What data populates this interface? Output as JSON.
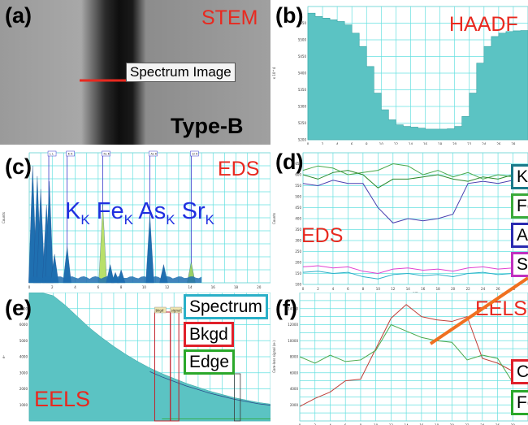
{
  "colors": {
    "teal": "#5bc3c3",
    "red": "#e8291f",
    "blue": "#1f2fe0",
    "grid": "#66e0e0",
    "green": "#4aa84a",
    "purple": "#4a3fb0",
    "magenta": "#e040d0",
    "orange": "#f07020",
    "darkred": "#c0403a"
  },
  "panels": {
    "a": {
      "letter": "(a)",
      "title": "STEM",
      "spectrum_label": "Spectrum Image",
      "type_label": "Type-B"
    },
    "b": {
      "letter": "(b)",
      "title": "HAADF"
    },
    "c": {
      "letter": "(c)",
      "title": "EDS",
      "element_labels": [
        {
          "base": "K",
          "sub": "K"
        },
        {
          "base": "Fe",
          "sub": "K"
        },
        {
          "base": "As",
          "sub": "K"
        },
        {
          "base": "Sr",
          "sub": "K"
        }
      ],
      "peak_tags": [
        "L L",
        "K K",
        "Fe K",
        "As K",
        "Sr K"
      ]
    },
    "d": {
      "letter": "(d)",
      "title": "EDS",
      "legend": [
        "K",
        "Fe",
        "As",
        "Sr"
      ]
    },
    "e": {
      "letter": "(e)",
      "title": "EELS",
      "legend": [
        "Spectrum",
        "Bkgd",
        "Edge"
      ],
      "window_tags": [
        "bkgd",
        "signal"
      ]
    },
    "f": {
      "letter": "(f)",
      "title": "EELS",
      "legend": [
        "C",
        "Fe"
      ]
    }
  },
  "chart_data": [
    {
      "id": "b",
      "type": "area",
      "title": "HAADF",
      "xlabel": "nm",
      "ylabel": "x 10^4",
      "xlim": [
        0,
        30
      ],
      "ylim": [
        5200,
        5600
      ],
      "yticks": [
        5200,
        5250,
        5300,
        5350,
        5400,
        5450,
        5500,
        5550
      ],
      "xticks": [
        0,
        2,
        4,
        6,
        8,
        10,
        12,
        14,
        16,
        18,
        20,
        22,
        24,
        26,
        28
      ],
      "x": [
        0,
        1,
        2,
        3,
        4,
        5,
        6,
        7,
        8,
        9,
        10,
        11,
        12,
        13,
        14,
        15,
        16,
        17,
        18,
        19,
        20,
        21,
        22,
        23,
        24,
        25,
        26,
        27,
        28,
        29,
        30
      ],
      "values": [
        5580,
        5570,
        5565,
        5560,
        5555,
        5545,
        5520,
        5480,
        5420,
        5340,
        5290,
        5260,
        5245,
        5240,
        5238,
        5235,
        5232,
        5232,
        5232,
        5233,
        5240,
        5270,
        5340,
        5430,
        5480,
        5510,
        5520,
        5525,
        5527,
        5528,
        5528
      ]
    },
    {
      "id": "c",
      "type": "bar",
      "title": "EDS",
      "xlabel": "",
      "ylabel": "Counts",
      "xlim": [
        0,
        21
      ],
      "ylim": [
        0,
        100
      ],
      "xticks": [
        0,
        2,
        4,
        6,
        8,
        10,
        12,
        14,
        16,
        18,
        20
      ],
      "peak_lines_kev": [
        1.7,
        3.3,
        6.4,
        10.5,
        14.1
      ],
      "peaks": [
        {
          "x": 0.3,
          "y": 90
        },
        {
          "x": 0.7,
          "y": 82
        },
        {
          "x": 1.0,
          "y": 72
        },
        {
          "x": 1.5,
          "y": 60
        },
        {
          "x": 1.75,
          "y": 78
        },
        {
          "x": 2.2,
          "y": 22
        },
        {
          "x": 3.3,
          "y": 28
        },
        {
          "x": 6.4,
          "y": 60
        },
        {
          "x": 7.05,
          "y": 14
        },
        {
          "x": 7.5,
          "y": 8
        },
        {
          "x": 8.0,
          "y": 10
        },
        {
          "x": 10.5,
          "y": 52
        },
        {
          "x": 11.7,
          "y": 14
        },
        {
          "x": 14.1,
          "y": 16
        }
      ]
    },
    {
      "id": "d",
      "type": "line",
      "title": "EDS",
      "xlabel": "nm",
      "ylabel": "Counts",
      "xlim": [
        0,
        30
      ],
      "ylim": [
        100,
        700
      ],
      "yticks": [
        100,
        150,
        200,
        250,
        300,
        350,
        400,
        450,
        500,
        550,
        600,
        650
      ],
      "xticks": [
        0,
        2,
        4,
        6,
        8,
        10,
        12,
        14,
        16,
        18,
        20,
        22,
        24,
        26,
        28
      ],
      "x": [
        0,
        2,
        4,
        6,
        8,
        10,
        12,
        14,
        16,
        18,
        20,
        22,
        24,
        26,
        28,
        30
      ],
      "series": [
        {
          "name": "K",
          "values": [
            620,
            640,
            630,
            600,
            610,
            620,
            650,
            640,
            600,
            620,
            590,
            610,
            580,
            600,
            590,
            610
          ]
        },
        {
          "name": "Fe",
          "values": [
            600,
            580,
            610,
            620,
            600,
            540,
            580,
            580,
            590,
            600,
            580,
            570,
            590,
            580,
            600,
            590
          ]
        },
        {
          "name": "As",
          "values": [
            560,
            550,
            575,
            560,
            560,
            450,
            380,
            400,
            390,
            400,
            420,
            560,
            570,
            560,
            575,
            570
          ]
        },
        {
          "name": "Sr",
          "values": [
            180,
            185,
            175,
            180,
            160,
            150,
            170,
            175,
            165,
            170,
            160,
            175,
            180,
            170,
            175,
            180
          ]
        }
      ]
    },
    {
      "id": "e",
      "type": "area",
      "title": "EELS",
      "xlabel": "",
      "ylabel": "e-",
      "xlim": [
        0,
        1
      ],
      "ylim": [
        0,
        8000
      ],
      "yticks": [
        1000,
        2000,
        3000,
        4000,
        5000,
        6000,
        7000
      ],
      "x": [
        0,
        0.05,
        0.1,
        0.15,
        0.2,
        0.25,
        0.3,
        0.35,
        0.4,
        0.45,
        0.5,
        0.55,
        0.6,
        0.65,
        0.7,
        0.75,
        0.8,
        0.85,
        0.9,
        0.95,
        1.0
      ],
      "values": [
        8000,
        8000,
        7800,
        7200,
        6500,
        5800,
        5200,
        4650,
        4150,
        3700,
        3300,
        2950,
        2650,
        2350,
        2100,
        1850,
        1650,
        1450,
        1300,
        1150,
        1050
      ]
    },
    {
      "id": "f",
      "type": "line",
      "title": "EELS",
      "xlabel": "",
      "ylabel": "Core-loss signal (e-)",
      "xlim": [
        0,
        30
      ],
      "ylim": [
        0,
        16000
      ],
      "yticks": [
        2000,
        4000,
        6000,
        8000,
        10000,
        12000,
        14000
      ],
      "xticks": [
        0,
        2,
        4,
        6,
        8,
        10,
        12,
        14,
        16,
        18,
        20,
        22,
        24,
        26,
        28
      ],
      "x": [
        0,
        2,
        4,
        6,
        8,
        10,
        12,
        14,
        16,
        18,
        20,
        22,
        24,
        26,
        28,
        30
      ],
      "series": [
        {
          "name": "C",
          "values": [
            1800,
            2800,
            3600,
            5000,
            5200,
            9000,
            12800,
            14500,
            13000,
            12600,
            12400,
            13000,
            7800,
            7200,
            6200,
            6800
          ]
        },
        {
          "name": "Fe",
          "values": [
            8000,
            7200,
            8200,
            7400,
            7600,
            8800,
            12000,
            11200,
            10400,
            10000,
            9800,
            7600,
            8200,
            7800,
            4800,
            5200
          ]
        }
      ]
    }
  ]
}
